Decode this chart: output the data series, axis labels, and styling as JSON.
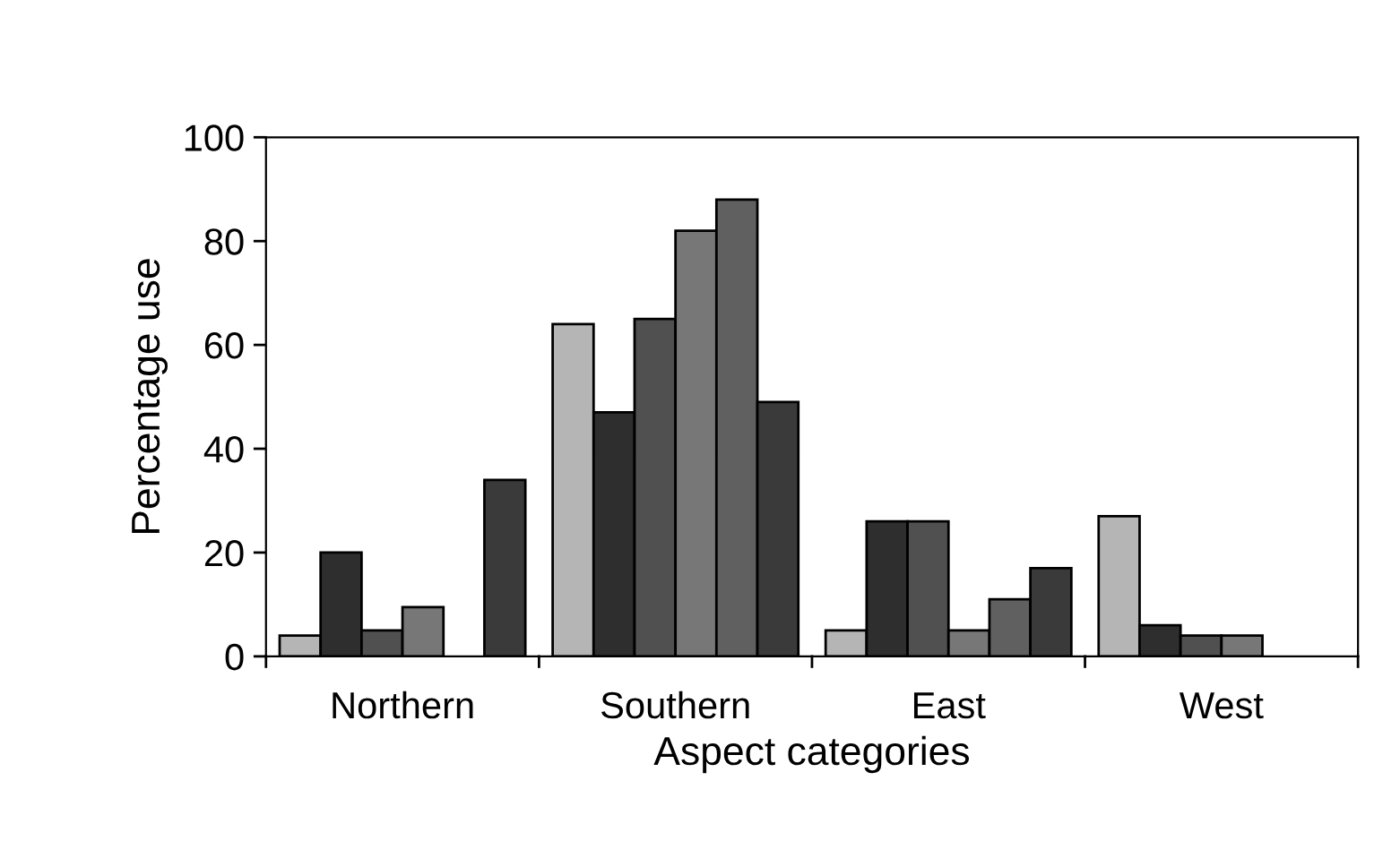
{
  "chart_data": {
    "type": "bar",
    "xlabel": "Aspect categories",
    "ylabel": "Percentage use",
    "categories": [
      "Northern",
      "Southern",
      "East",
      "West"
    ],
    "series": [
      {
        "color": "#b5b5b5",
        "values": [
          4,
          64,
          5,
          27
        ]
      },
      {
        "color": "#2e2e2e",
        "values": [
          20,
          47,
          26,
          6
        ]
      },
      {
        "color": "#505050",
        "values": [
          5,
          65,
          26,
          4
        ]
      },
      {
        "color": "#777777",
        "values": [
          9.5,
          82,
          5,
          4
        ]
      },
      {
        "color": "#606060",
        "values": [
          null,
          88,
          11,
          null
        ]
      },
      {
        "color": "#3a3a3a",
        "values": [
          34,
          49,
          17,
          null
        ]
      }
    ],
    "ylim": [
      0,
      100
    ],
    "yticks": [
      0,
      20,
      40,
      60,
      80,
      100
    ],
    "grid": false,
    "legend": false
  }
}
